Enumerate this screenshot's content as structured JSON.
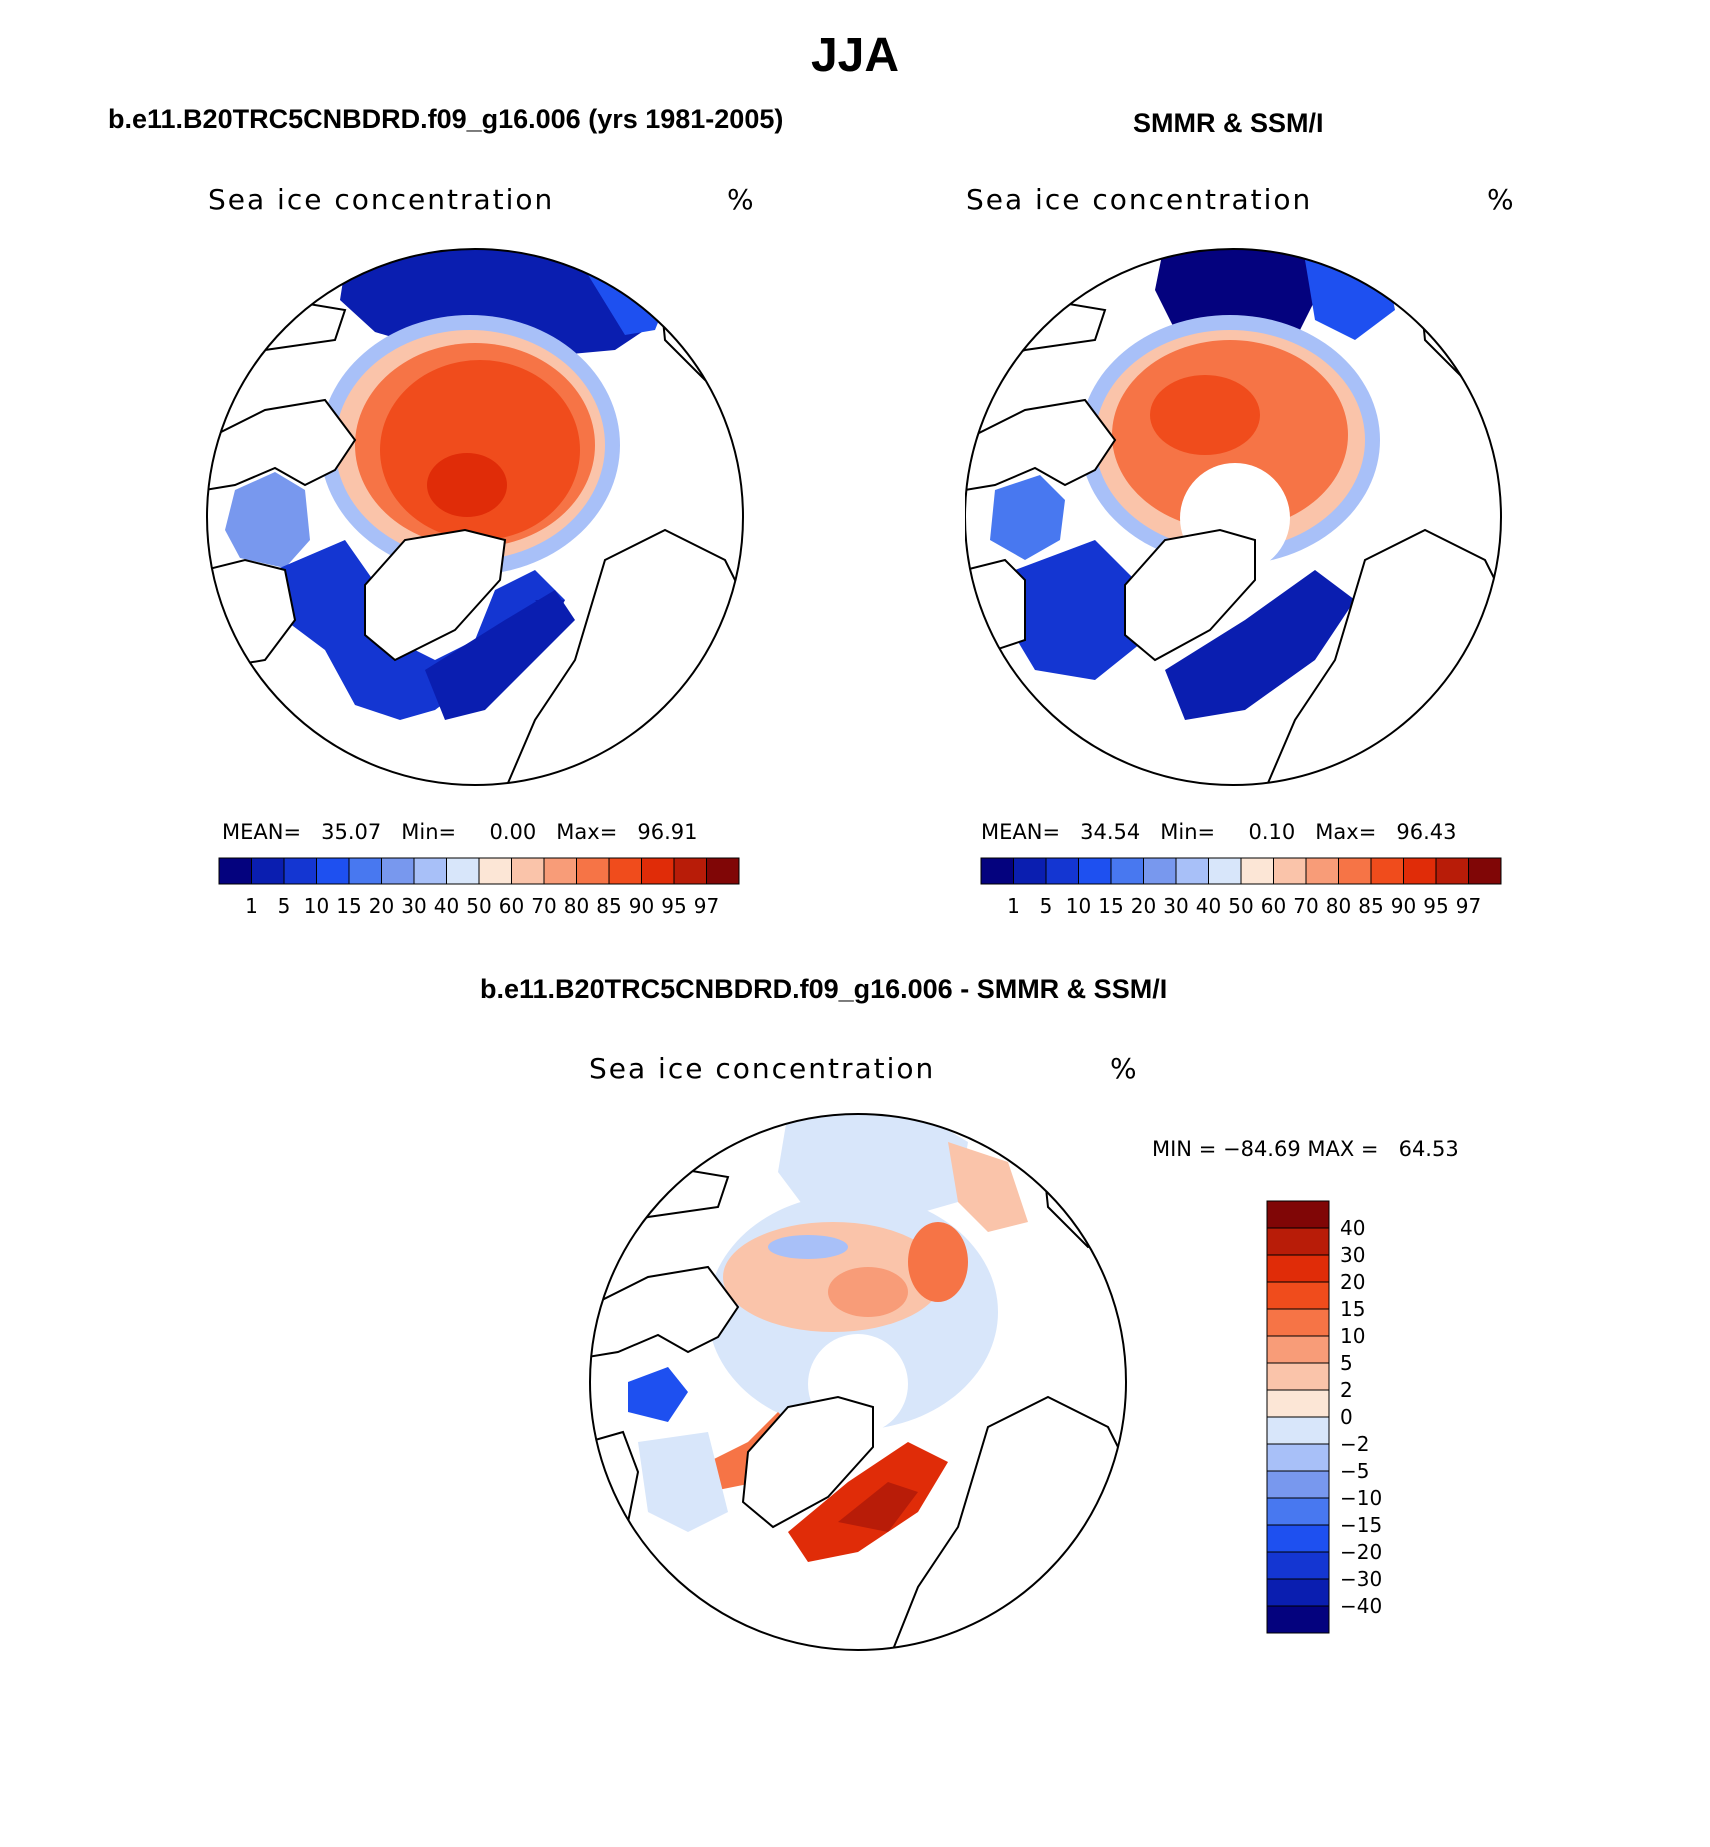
{
  "title": "JJA",
  "panels": [
    {
      "heading": "b.e11.B20TRC5CNBDRD.f09_g16.006 (yrs 1981-2005)",
      "variable": "Sea ice concentration",
      "units": "%",
      "mean_label": "MEAN=",
      "mean": "35.07",
      "min_label": "Min=",
      "min": "0.00",
      "max_label": "Max=",
      "max": "96.91"
    },
    {
      "heading": "SMMR & SSM/I",
      "variable": "Sea ice concentration",
      "units": "%",
      "mean_label": "MEAN=",
      "mean": "34.54",
      "min_label": "Min=",
      "min": "0.10",
      "max_label": "Max=",
      "max": "96.43"
    }
  ],
  "diff_panel": {
    "heading": "b.e11.B20TRC5CNBDRD.f09_g16.006 - SMMR & SSM/I",
    "variable": "Sea ice concentration",
    "units": "%",
    "min_label": "MIN =",
    "min": "−84.69",
    "max_label": "MAX =",
    "max": "64.53"
  },
  "colorbar_levels": [
    "1",
    "5",
    "10",
    "15",
    "20",
    "30",
    "40",
    "50",
    "60",
    "70",
    "80",
    "85",
    "90",
    "95",
    "97"
  ],
  "colorbar_colors": [
    "#04027e",
    "#0a1eb0",
    "#1436d2",
    "#1e50f0",
    "#4878f0",
    "#7898ee",
    "#a8c0f8",
    "#d8e6fa",
    "#fce6d6",
    "#fac4aa",
    "#f89c78",
    "#f67446",
    "#f04c1c",
    "#e02c08",
    "#b81c08",
    "#800606"
  ],
  "diff_levels": [
    "40",
    "30",
    "20",
    "15",
    "10",
    "5",
    "2",
    "0",
    "−2",
    "−5",
    "−10",
    "−15",
    "−20",
    "−30",
    "−40"
  ],
  "diff_colors": [
    "#800606",
    "#b81c08",
    "#e02c08",
    "#f04c1c",
    "#f67446",
    "#f89c78",
    "#fac4aa",
    "#fce6d6",
    "#d8e6fa",
    "#a8c0f8",
    "#7898ee",
    "#4878f0",
    "#1e50f0",
    "#1436d2",
    "#0a1eb0",
    "#04027e"
  ]
}
